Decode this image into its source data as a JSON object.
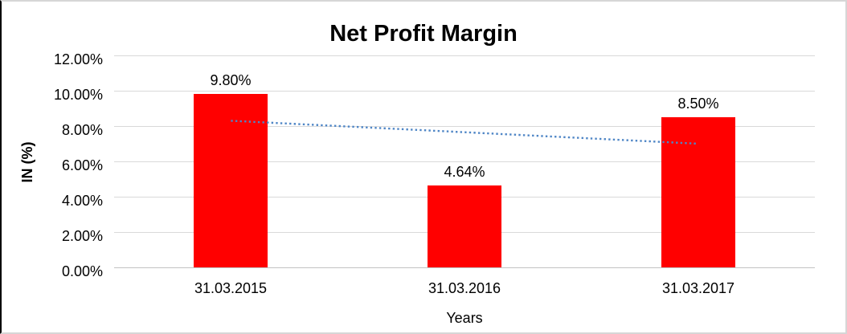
{
  "chart_data": {
    "type": "bar",
    "title": "Net Profit Margin",
    "categories": [
      "31.03.2015",
      "31.03.2016",
      "31.03.2017"
    ],
    "values": [
      9.8,
      4.64,
      8.5
    ],
    "data_labels": [
      "9.80%",
      "4.64%",
      "8.50%"
    ],
    "xlabel": "Years",
    "ylabel": "IN (%)",
    "ylim": [
      0,
      12
    ],
    "yticks": [
      0,
      2,
      4,
      6,
      8,
      10,
      12
    ],
    "ytick_labels": [
      "0.00%",
      "2.00%",
      "4.00%",
      "6.00%",
      "8.00%",
      "10.00%",
      "12.00%"
    ],
    "bar_color": "#ff0000",
    "grid": true,
    "gridline_color": "#d9d9d9",
    "legend_position": "none",
    "trendline": {
      "type": "linear",
      "style": "dotted",
      "color": "#4f86c6",
      "start_value": 8.3,
      "end_value": 7.0
    }
  }
}
